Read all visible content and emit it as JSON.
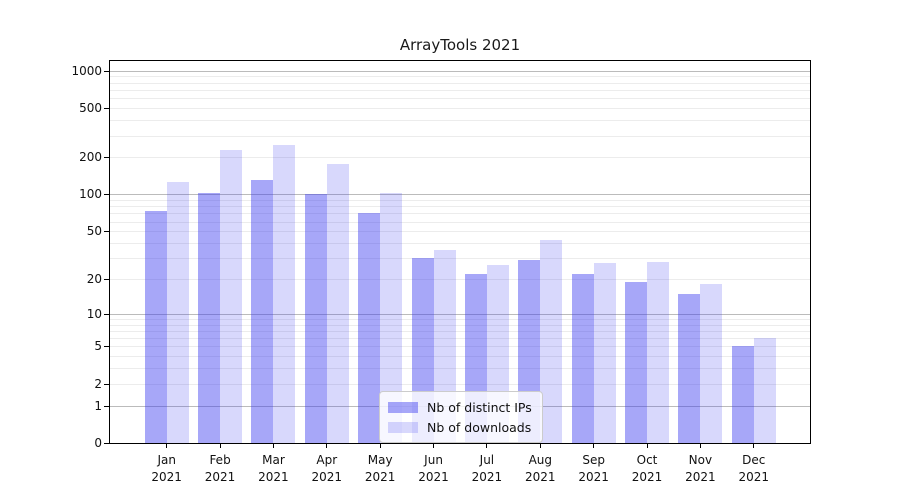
{
  "page": {
    "background": "#ffffff"
  },
  "chart_data": {
    "type": "bar",
    "title": "ArrayTools 2021",
    "categories": [
      "Jan 2021",
      "Feb 2021",
      "Mar 2021",
      "Apr 2021",
      "May 2021",
      "Jun 2021",
      "Jul 2021",
      "Aug 2021",
      "Sep 2021",
      "Oct 2021",
      "Nov 2021",
      "Dec 2021"
    ],
    "series": [
      {
        "name": "Nb of distinct IPs",
        "color": "rgba(60,60,240,0.45)",
        "values": [
          73,
          102,
          131,
          100,
          71,
          30,
          22,
          29,
          22,
          19,
          15,
          5
        ]
      },
      {
        "name": "Nb of downloads",
        "color": "rgba(60,60,240,0.2)",
        "values": [
          125,
          230,
          251,
          176,
          103,
          35,
          26,
          42,
          27,
          28,
          18,
          6
        ]
      }
    ],
    "xlabel": "",
    "ylabel": "",
    "y_scale": "log1p",
    "ylim": [
      0,
      1200
    ],
    "y_ticks": [
      0,
      1,
      2,
      5,
      10,
      20,
      50,
      100,
      200,
      500,
      1000
    ],
    "grid": {
      "major_lines": [
        1,
        10,
        100,
        1000
      ],
      "minor_decades": [
        1,
        10,
        100
      ],
      "minor_multipliers": [
        2,
        3,
        4,
        5,
        6,
        7,
        8,
        9
      ]
    },
    "legend": {
      "position": "inside-bottom-center",
      "entries": [
        "Nb of distinct IPs",
        "Nb of downloads"
      ]
    }
  },
  "colors": {
    "bar_distinct_ips_solid": "#a8a8f6",
    "bar_downloads_solid": "#dcdcf9",
    "grid_major": "#bbbbbb",
    "grid_minor": "#ececec",
    "spine": "#000000",
    "text": "#1a1a1a",
    "legend_border": "#cccccc"
  }
}
